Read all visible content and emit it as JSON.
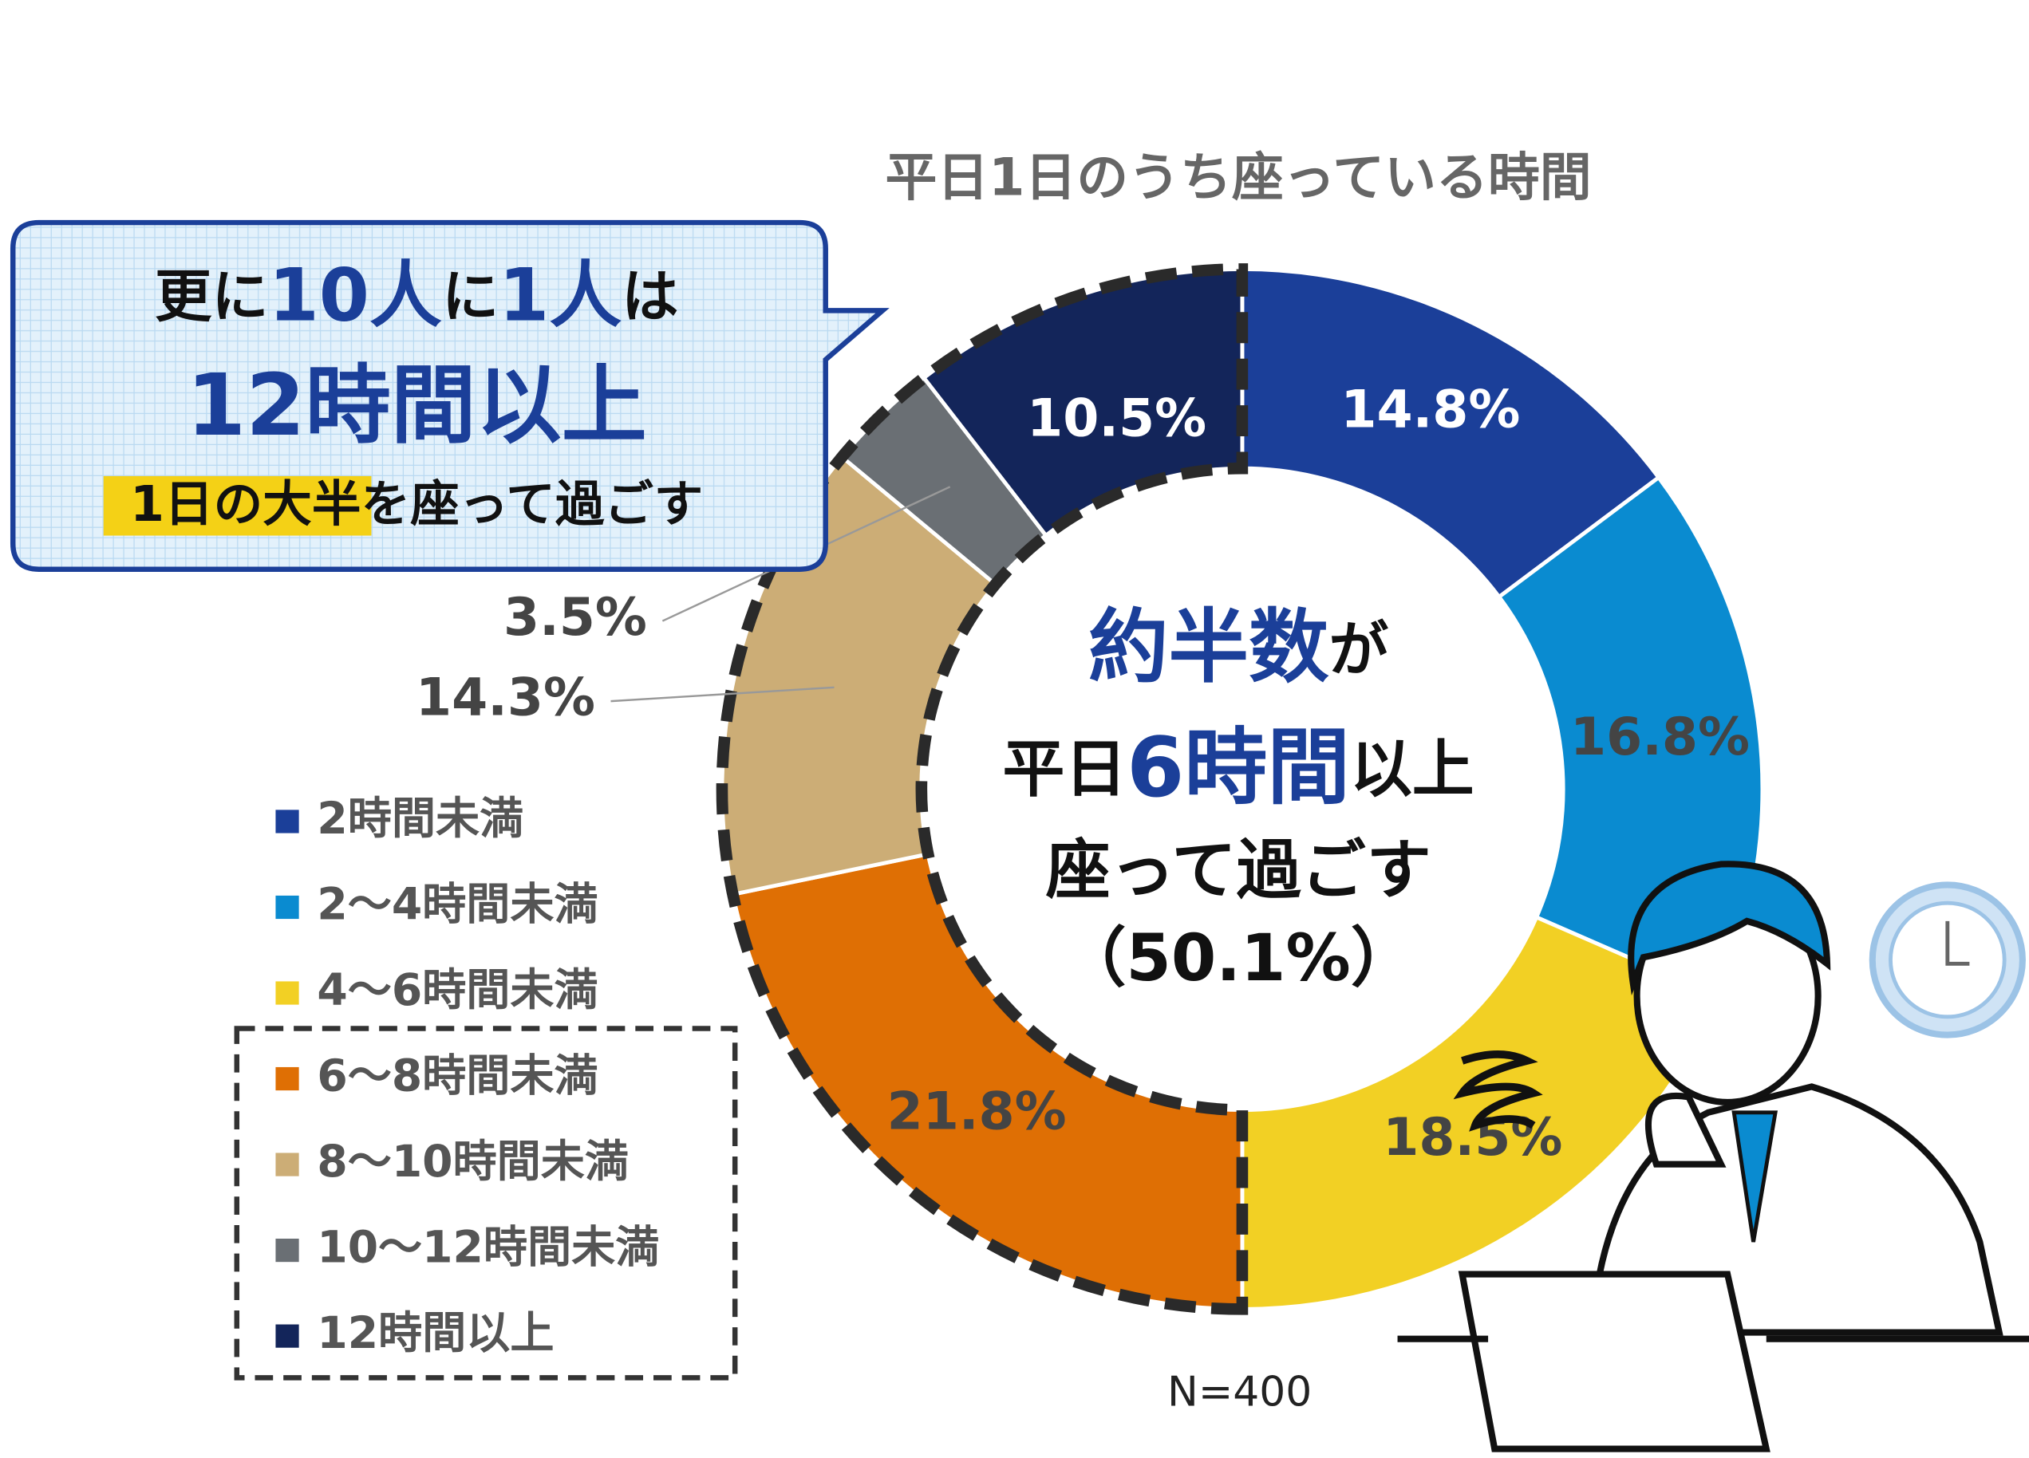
{
  "chart_data": {
    "type": "donut",
    "title": "平日1日のうち座っている時間",
    "categories": [
      "2時間未満",
      "2～4時間未満",
      "4～6時間未満",
      "6～8時間未満",
      "8～10時間未満",
      "10～12時間未満",
      "12時間以上"
    ],
    "values": [
      14.8,
      16.8,
      18.5,
      21.8,
      14.3,
      3.5,
      10.5
    ],
    "value_labels": [
      "14.8%",
      "16.8%",
      "18.5%",
      "21.8%",
      "14.3%",
      "3.5%",
      "10.5%"
    ],
    "colors": [
      "#1b3f99",
      "#0a8bd0",
      "#f2d024",
      "#df6f04",
      "#ccad76",
      "#6a6f74",
      "#13255a"
    ],
    "note": "N=400"
  },
  "callout": {
    "line1": [
      "更に",
      "10人",
      "に",
      "1人",
      "は"
    ],
    "line2": "12時間以上",
    "line3": [
      "1日の大半",
      "を座って過ごす"
    ]
  },
  "center_text": {
    "line1": [
      "約半数",
      "が"
    ],
    "line2": [
      "平日",
      "6時間",
      "以上"
    ],
    "line3": "座って過ごす",
    "line4": "（50.1%）"
  }
}
